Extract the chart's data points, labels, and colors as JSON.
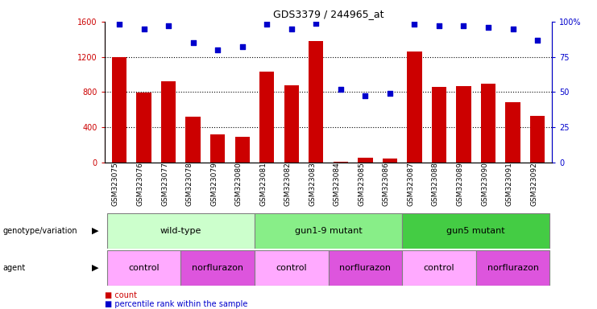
{
  "title": "GDS3379 / 244965_at",
  "samples": [
    "GSM323075",
    "GSM323076",
    "GSM323077",
    "GSM323078",
    "GSM323079",
    "GSM323080",
    "GSM323081",
    "GSM323082",
    "GSM323083",
    "GSM323084",
    "GSM323085",
    "GSM323086",
    "GSM323087",
    "GSM323088",
    "GSM323089",
    "GSM323090",
    "GSM323091",
    "GSM323092"
  ],
  "counts": [
    1200,
    790,
    920,
    520,
    320,
    290,
    1030,
    880,
    1380,
    5,
    55,
    40,
    1260,
    860,
    870,
    890,
    680,
    530
  ],
  "percentile_ranks": [
    98,
    95,
    97,
    85,
    80,
    82,
    98,
    95,
    99,
    52,
    47,
    49,
    98,
    97,
    97,
    96,
    95,
    87
  ],
  "ylim_left": [
    0,
    1600
  ],
  "ylim_right": [
    0,
    100
  ],
  "yticks_left": [
    0,
    400,
    800,
    1200,
    1600
  ],
  "yticks_right": [
    0,
    25,
    50,
    75,
    100
  ],
  "ytick_labels_right": [
    "0",
    "25",
    "50",
    "75",
    "100%"
  ],
  "bar_color": "#cc0000",
  "dot_color": "#0000cc",
  "genotype_groups": [
    {
      "label": "wild-type",
      "start": 0,
      "end": 5,
      "color": "#ccffcc"
    },
    {
      "label": "gun1-9 mutant",
      "start": 6,
      "end": 11,
      "color": "#88ee88"
    },
    {
      "label": "gun5 mutant",
      "start": 12,
      "end": 17,
      "color": "#44cc44"
    }
  ],
  "agent_groups": [
    {
      "label": "control",
      "start": 0,
      "end": 2,
      "color": "#ffaaff"
    },
    {
      "label": "norflurazon",
      "start": 3,
      "end": 5,
      "color": "#dd55dd"
    },
    {
      "label": "control",
      "start": 6,
      "end": 8,
      "color": "#ffaaff"
    },
    {
      "label": "norflurazon",
      "start": 9,
      "end": 11,
      "color": "#dd55dd"
    },
    {
      "label": "control",
      "start": 12,
      "end": 14,
      "color": "#ffaaff"
    },
    {
      "label": "norflurazon",
      "start": 15,
      "end": 17,
      "color": "#dd55dd"
    }
  ],
  "legend_count_color": "#cc0000",
  "legend_dot_color": "#0000cc"
}
